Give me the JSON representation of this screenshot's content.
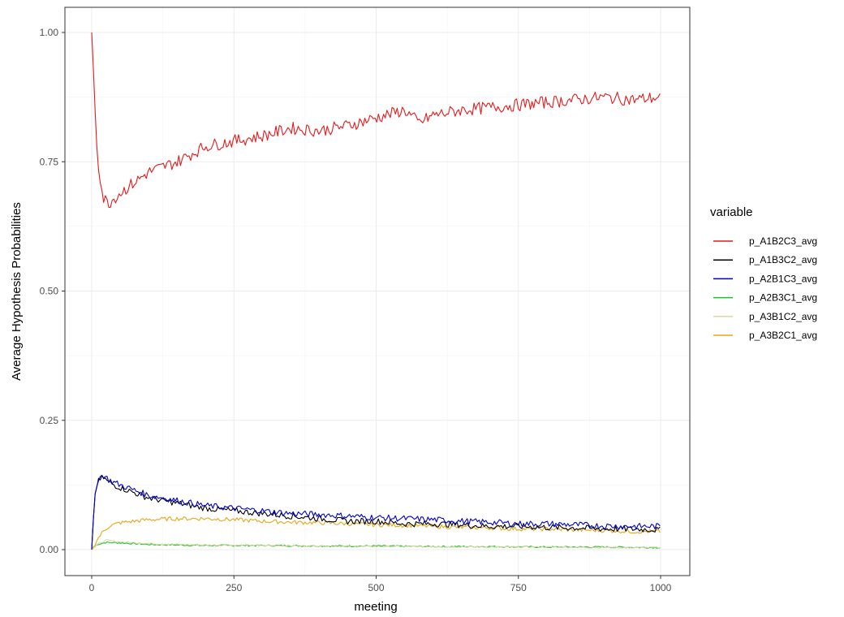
{
  "chart_data": {
    "type": "line",
    "xlabel": "meeting",
    "ylabel": "Average Hypothesis Probabilities",
    "xlim": [
      0,
      1000
    ],
    "ylim": [
      0,
      1
    ],
    "x_ticks": [
      0,
      250,
      500,
      750,
      1000
    ],
    "x_tick_labels": [
      "0",
      "250",
      "500",
      "750",
      "1000"
    ],
    "y_ticks": [
      0,
      0.25,
      0.5,
      0.75,
      1.0
    ],
    "y_tick_labels": [
      "0.00",
      "0.25",
      "0.50",
      "0.75",
      "1.00"
    ],
    "grid": true,
    "legend": {
      "title": "variable",
      "position": "right"
    },
    "series": [
      {
        "name": "p_A1B2C3_avg",
        "color": "#e41a1c",
        "x": [
          0,
          10,
          20,
          30,
          50,
          75,
          100,
          150,
          200,
          250,
          300,
          350,
          400,
          450,
          500,
          550,
          575,
          600,
          650,
          700,
          750,
          800,
          850,
          900,
          950,
          1000
        ],
        "y": [
          1.0,
          0.76,
          0.68,
          0.67,
          0.69,
          0.71,
          0.73,
          0.75,
          0.78,
          0.79,
          0.8,
          0.815,
          0.81,
          0.82,
          0.835,
          0.85,
          0.825,
          0.84,
          0.85,
          0.855,
          0.86,
          0.865,
          0.87,
          0.875,
          0.87,
          0.875
        ]
      },
      {
        "name": "p_A1B3C2_avg",
        "color": "#000000",
        "x": [
          0,
          5,
          10,
          20,
          30,
          50,
          75,
          100,
          150,
          200,
          250,
          300,
          350,
          400,
          450,
          500,
          550,
          600,
          650,
          700,
          750,
          800,
          850,
          900,
          950,
          1000
        ],
        "y": [
          0.0,
          0.1,
          0.13,
          0.14,
          0.13,
          0.12,
          0.11,
          0.1,
          0.09,
          0.08,
          0.075,
          0.07,
          0.065,
          0.06,
          0.055,
          0.055,
          0.05,
          0.05,
          0.048,
          0.045,
          0.045,
          0.043,
          0.042,
          0.04,
          0.04,
          0.038
        ]
      },
      {
        "name": "p_A2B1C3_avg",
        "color": "#0000cd",
        "x": [
          0,
          5,
          10,
          20,
          30,
          50,
          75,
          100,
          150,
          200,
          250,
          300,
          350,
          400,
          450,
          500,
          550,
          600,
          650,
          700,
          750,
          800,
          850,
          900,
          950,
          1000
        ],
        "y": [
          0.0,
          0.1,
          0.135,
          0.145,
          0.135,
          0.125,
          0.115,
          0.105,
          0.095,
          0.085,
          0.08,
          0.075,
          0.07,
          0.068,
          0.065,
          0.062,
          0.06,
          0.058,
          0.055,
          0.053,
          0.05,
          0.05,
          0.048,
          0.046,
          0.045,
          0.045
        ]
      },
      {
        "name": "p_A2B3C1_avg",
        "color": "#1dbf2a",
        "x": [
          0,
          10,
          25,
          50,
          100,
          150,
          200,
          300,
          400,
          500,
          600,
          700,
          800,
          900,
          1000
        ],
        "y": [
          0.0,
          0.01,
          0.014,
          0.013,
          0.01,
          0.009,
          0.008,
          0.008,
          0.007,
          0.007,
          0.006,
          0.006,
          0.005,
          0.005,
          0.004
        ]
      },
      {
        "name": "p_A3B1C2_avg",
        "color": "#d9d9a8",
        "x": [
          0,
          10,
          25,
          50,
          100,
          150,
          200,
          300,
          400,
          500,
          600,
          700,
          800,
          900,
          1000
        ],
        "y": [
          0.0,
          0.01,
          0.018,
          0.015,
          0.012,
          0.01,
          0.009,
          0.008,
          0.007,
          0.006,
          0.006,
          0.005,
          0.005,
          0.004,
          0.004
        ]
      },
      {
        "name": "p_A3B2C1_avg",
        "color": "#e6a619",
        "x": [
          0,
          10,
          20,
          30,
          50,
          75,
          100,
          150,
          200,
          250,
          300,
          350,
          400,
          450,
          500,
          550,
          600,
          650,
          700,
          750,
          800,
          850,
          900,
          950,
          1000
        ],
        "y": [
          0.0,
          0.02,
          0.035,
          0.045,
          0.052,
          0.055,
          0.058,
          0.06,
          0.06,
          0.058,
          0.055,
          0.053,
          0.052,
          0.05,
          0.048,
          0.047,
          0.045,
          0.043,
          0.042,
          0.04,
          0.04,
          0.038,
          0.037,
          0.035,
          0.035
        ]
      }
    ]
  }
}
